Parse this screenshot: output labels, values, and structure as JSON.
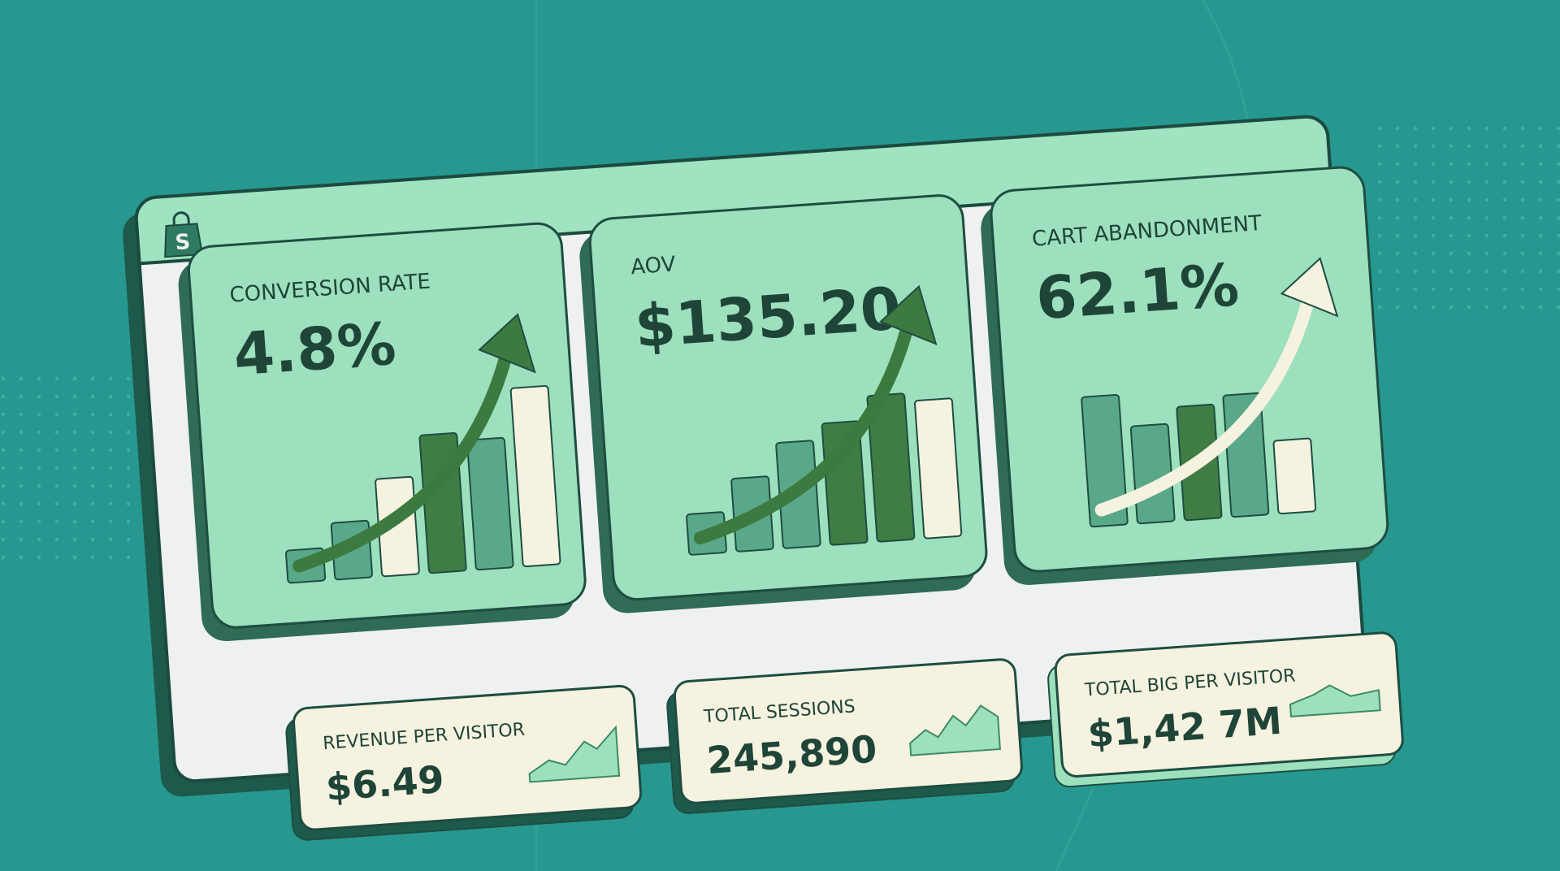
{
  "cards": [
    {
      "label": "CONVERSION RATE",
      "value": "4.8%"
    },
    {
      "label": "AOV",
      "value": "$135.20"
    },
    {
      "label": "CART ABANDONMENT",
      "value": "62.1%"
    }
  ],
  "stats": [
    {
      "label": "REVENUE PER VISITOR",
      "value": "$6.49"
    },
    {
      "label": "TOTAL SESSIONS",
      "value": "245,890"
    },
    {
      "label": "TOTAL BIG PER VISITOR",
      "value": "$1,42 7M"
    }
  ]
}
